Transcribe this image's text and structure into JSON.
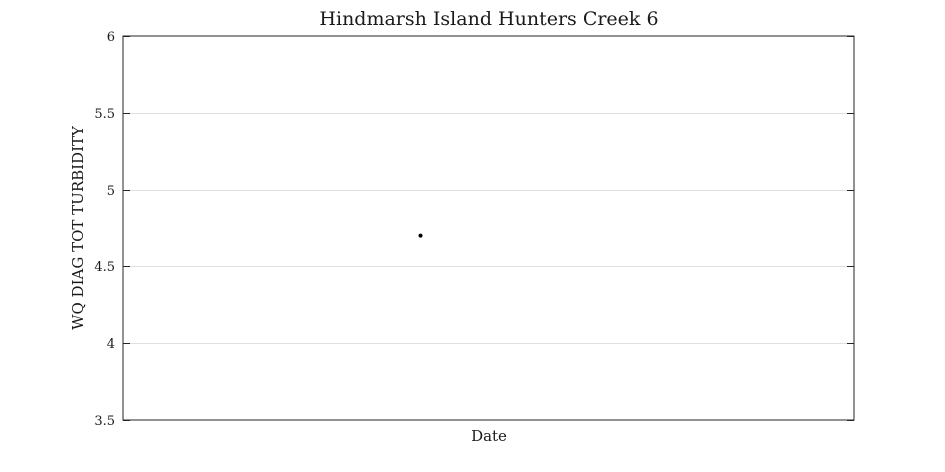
{
  "chart_data": {
    "type": "scatter",
    "title": "Hindmarsh Island Hunters Creek 6",
    "xlabel": "Date",
    "ylabel": "WQ DIAG TOT TURBIDITY",
    "ylim": [
      3.5,
      6
    ],
    "yticks": [
      3.5,
      4,
      4.5,
      5,
      5.5,
      6
    ],
    "ytick_labels": [
      "3.5",
      "4",
      "4.5",
      "5",
      "5.5",
      "6"
    ],
    "xlim": [
      0,
      1
    ],
    "grid": "horizontal",
    "series": [
      {
        "x": [
          0.407
        ],
        "values": [
          4.7
        ]
      }
    ],
    "colors": {
      "points": "#000000",
      "grid": "#e0e0e0",
      "axes": "#262626"
    }
  }
}
